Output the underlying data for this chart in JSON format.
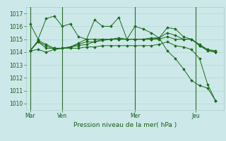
{
  "background_color": "#cce8e8",
  "grid_color": "#b8d8d8",
  "line_color": "#1a6b1a",
  "vline_color": "#2d6b2d",
  "title": "Pression niveau de la mer( hPa )",
  "ylim": [
    1009.5,
    1017.5
  ],
  "yticks": [
    1010,
    1011,
    1012,
    1013,
    1014,
    1015,
    1016,
    1017
  ],
  "day_labels": [
    "Mar",
    "Ven",
    "Mer",
    "Jeu"
  ],
  "day_positions": [
    0,
    16,
    52,
    82
  ],
  "xlim": [
    -2,
    96
  ],
  "series": [
    [
      1016.2,
      1015.0,
      1016.6,
      1016.8,
      1016.0,
      1016.2,
      1015.2,
      1015.0,
      1016.5,
      1016.0,
      1016.0,
      1016.7,
      1015.0,
      1016.0,
      1015.8,
      1015.5,
      1015.1,
      1014.1,
      1013.5,
      1012.7,
      1011.8,
      1011.4,
      1011.2,
      1010.2
    ],
    [
      1014.1,
      1014.9,
      1014.6,
      1014.3,
      1014.3,
      1014.4,
      1014.5,
      1014.6,
      1014.8,
      1015.0,
      1015.0,
      1015.1,
      1015.0,
      1015.0,
      1015.0,
      1015.0,
      1015.1,
      1015.9,
      1015.8,
      1015.2,
      1015.0,
      1014.5,
      1014.2,
      1014.1
    ],
    [
      1014.1,
      1014.8,
      1014.5,
      1014.2,
      1014.3,
      1014.4,
      1014.7,
      1015.0,
      1015.0,
      1015.0,
      1015.0,
      1015.0,
      1015.0,
      1015.0,
      1015.0,
      1015.1,
      1015.1,
      1015.5,
      1015.3,
      1015.0,
      1015.0,
      1014.6,
      1014.2,
      1014.0
    ],
    [
      1014.1,
      1014.8,
      1014.3,
      1014.3,
      1014.3,
      1014.4,
      1014.6,
      1014.8,
      1014.8,
      1014.9,
      1015.0,
      1015.0,
      1015.0,
      1015.0,
      1015.0,
      1015.0,
      1015.0,
      1015.2,
      1015.0,
      1015.0,
      1015.0,
      1014.5,
      1014.1,
      1014.0
    ],
    [
      1014.1,
      1014.2,
      1014.0,
      1014.2,
      1014.3,
      1014.3,
      1014.3,
      1014.4,
      1014.4,
      1014.5,
      1014.5,
      1014.5,
      1014.5,
      1014.5,
      1014.5,
      1014.5,
      1014.6,
      1014.8,
      1014.5,
      1014.4,
      1014.2,
      1013.5,
      1011.5,
      1010.2
    ]
  ],
  "x_positions": [
    0,
    4,
    8,
    12,
    16,
    20,
    24,
    28,
    32,
    36,
    40,
    44,
    48,
    52,
    56,
    60,
    64,
    68,
    72,
    76,
    80,
    84,
    88,
    92
  ]
}
